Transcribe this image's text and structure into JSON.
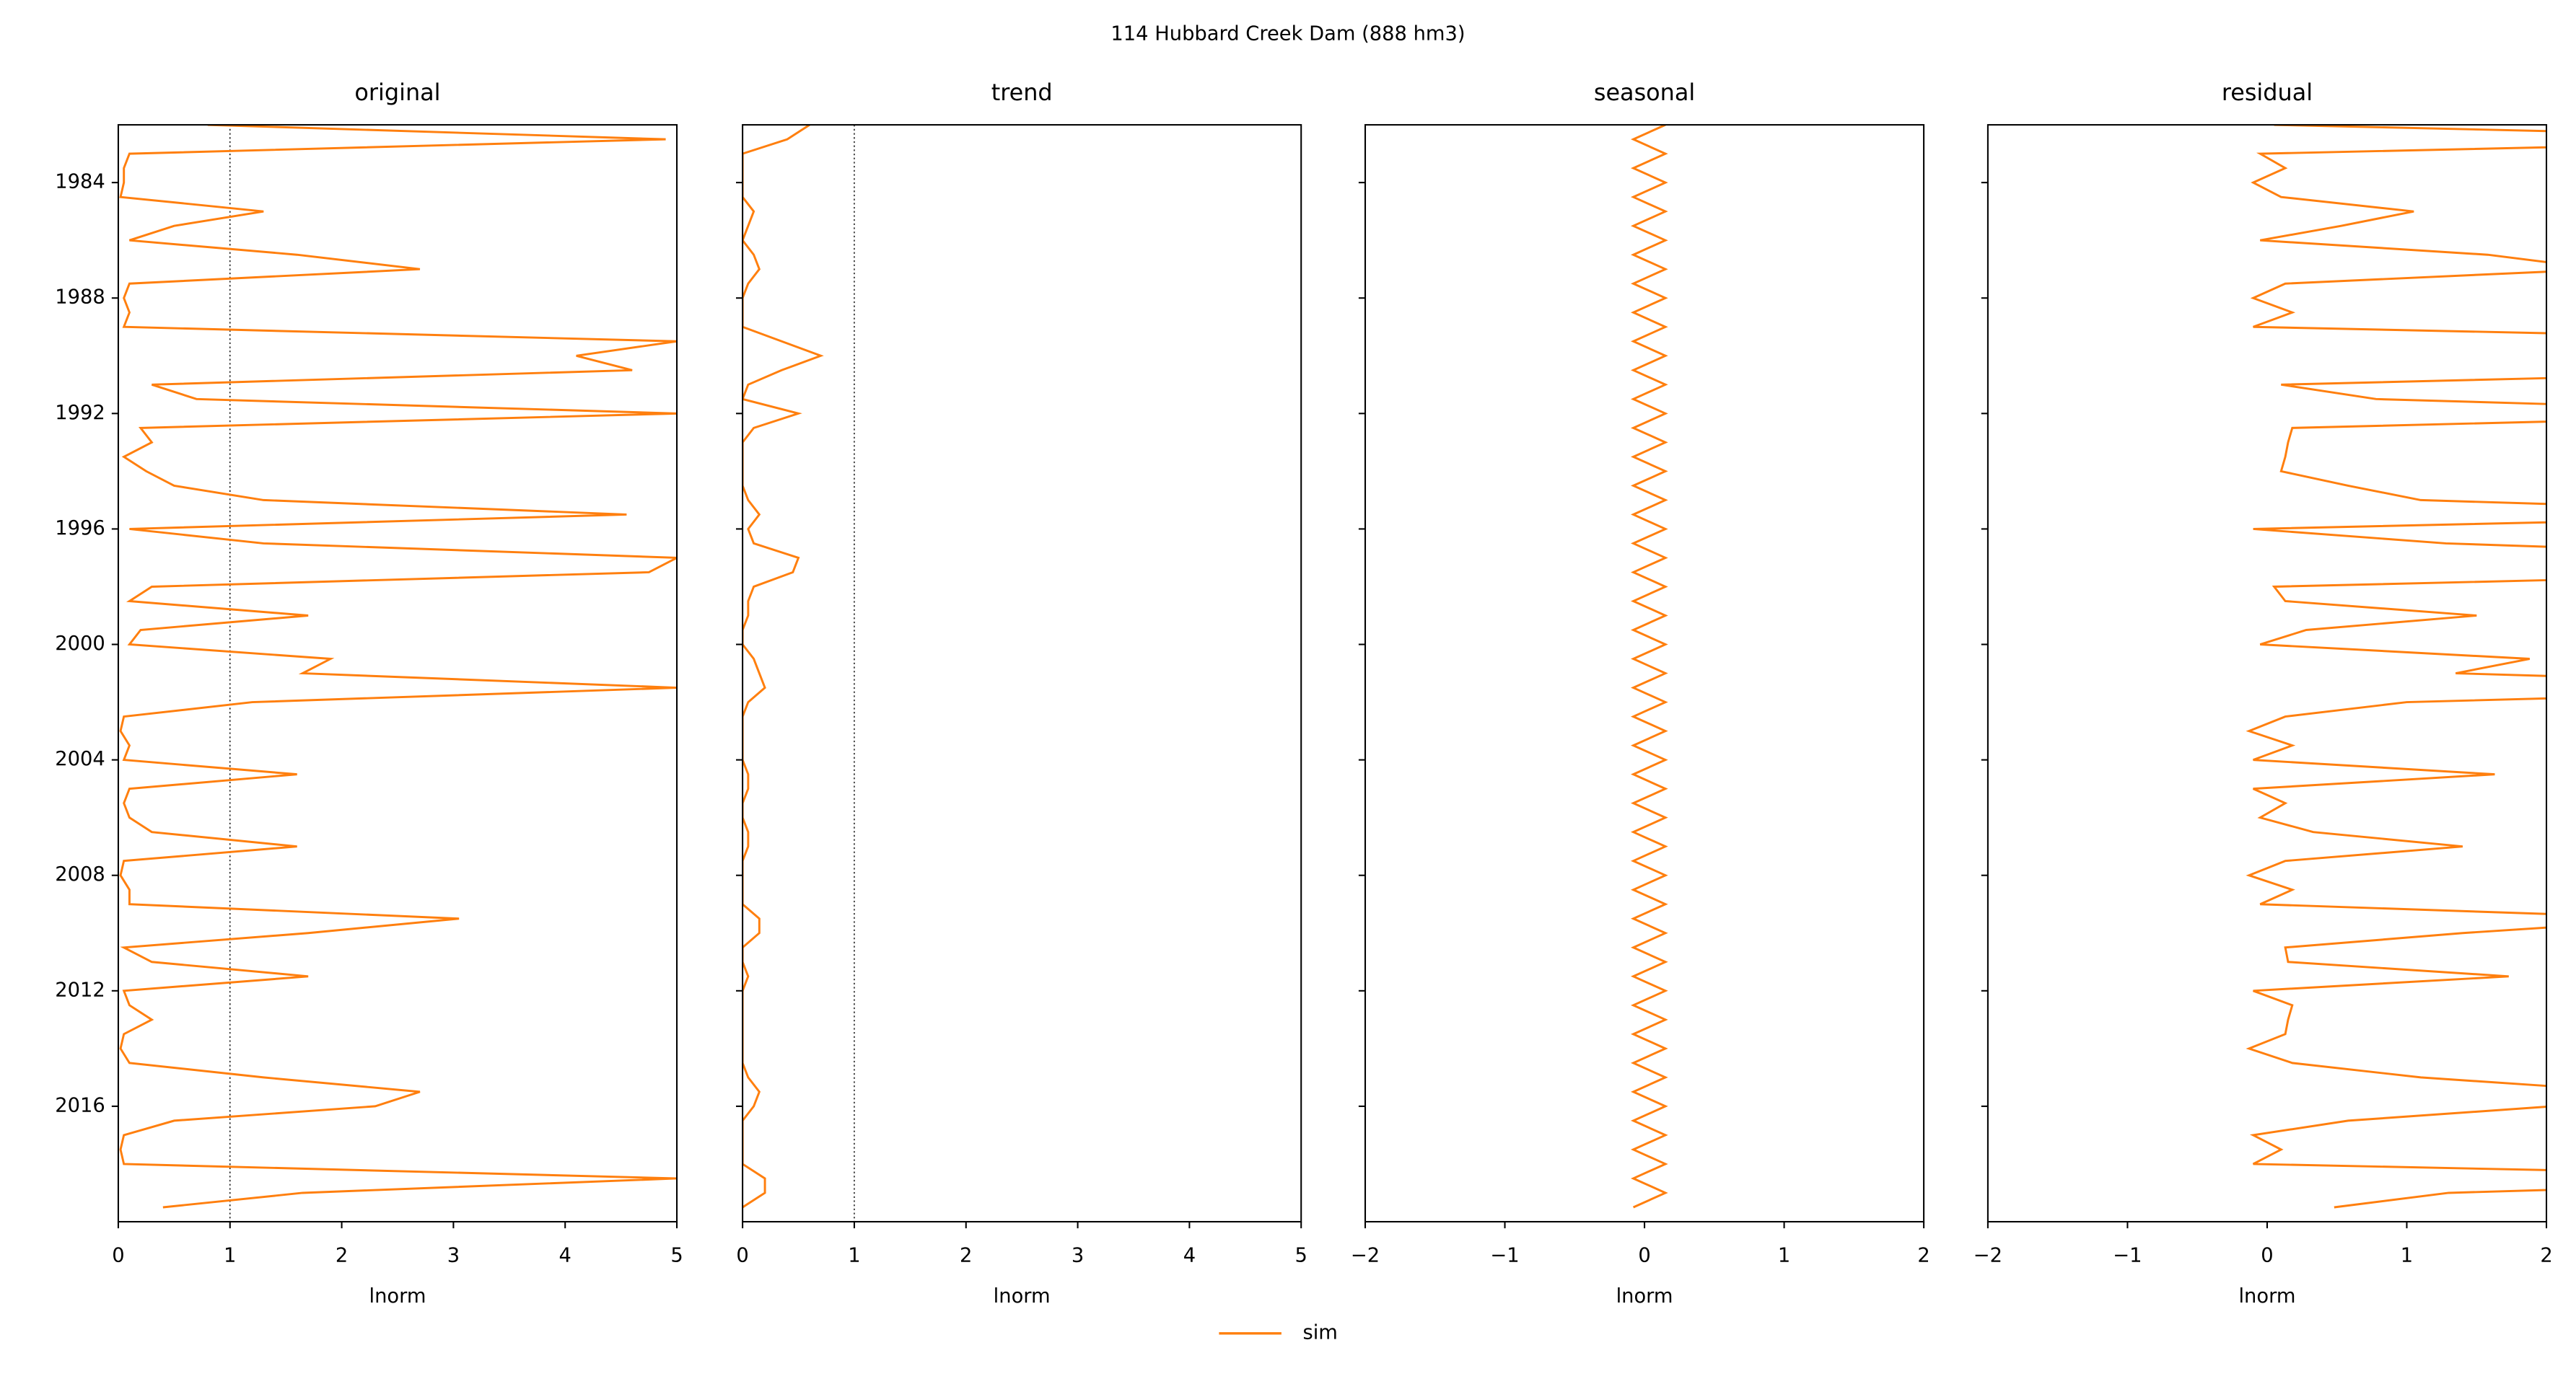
{
  "title": "114  Hubbard Creek Dam (888 hm3)",
  "chart_data": [
    {
      "type": "line",
      "title": "original",
      "xlabel": "lnorm",
      "xlim": [
        0,
        5
      ],
      "xticks": [
        0,
        1,
        2,
        3,
        4,
        5
      ],
      "vline": 1,
      "ylim": [
        1982,
        2020
      ],
      "yticks": [
        1984,
        1988,
        1992,
        1996,
        2000,
        2004,
        2008,
        2012,
        2016
      ],
      "y": [
        1982,
        1982.5,
        1983,
        1983.5,
        1984,
        1984.5,
        1985,
        1985.5,
        1986,
        1986.5,
        1987,
        1987.5,
        1988,
        1988.5,
        1989,
        1989.5,
        1990,
        1990.5,
        1991,
        1991.5,
        1992,
        1992.5,
        1993,
        1993.5,
        1994,
        1994.5,
        1995,
        1995.5,
        1996,
        1996.5,
        1997,
        1997.5,
        1998,
        1998.5,
        1999,
        1999.5,
        2000,
        2000.5,
        2001,
        2001.5,
        2002,
        2002.5,
        2003,
        2003.5,
        2004,
        2004.5,
        2005,
        2005.5,
        2006,
        2006.5,
        2007,
        2007.5,
        2008,
        2008.5,
        2009,
        2009.5,
        2010,
        2010.5,
        2011,
        2011.5,
        2012,
        2012.5,
        2013,
        2013.5,
        2014,
        2014.5,
        2015,
        2015.5,
        2016,
        2016.5,
        2017,
        2017.5,
        2018,
        2018.5,
        2019,
        2019.5
      ],
      "series": [
        {
          "name": "sim",
          "color": "#ff7f0e",
          "values": [
            0.8,
            4.9,
            0.1,
            0.05,
            0.05,
            0.02,
            1.3,
            0.5,
            0.1,
            1.6,
            2.7,
            0.1,
            0.05,
            0.1,
            0.05,
            5,
            4.1,
            4.6,
            0.3,
            0.7,
            5,
            0.2,
            0.3,
            0.05,
            0.25,
            0.5,
            1.3,
            4.55,
            0.1,
            1.3,
            5,
            4.75,
            0.3,
            0.1,
            1.7,
            0.2,
            0.1,
            1.9,
            1.65,
            5,
            1.2,
            0.05,
            0.02,
            0.1,
            0.05,
            1.6,
            0.1,
            0.05,
            0.1,
            0.3,
            1.6,
            0.05,
            0.02,
            0.1,
            0.1,
            3.05,
            1.7,
            0.05,
            0.3,
            1.7,
            0.05,
            0.1,
            0.3,
            0.05,
            0.02,
            0.1,
            1.3,
            2.7,
            2.3,
            0.5,
            0.05,
            0.02,
            0.05,
            5,
            1.65,
            0.4
          ]
        }
      ]
    },
    {
      "type": "line",
      "title": "trend",
      "xlabel": "lnorm",
      "xlim": [
        0,
        5
      ],
      "xticks": [
        0,
        1,
        2,
        3,
        4,
        5
      ],
      "vline": 1,
      "ylim": [
        1982,
        2020
      ],
      "yticks": [
        1984,
        1988,
        1992,
        1996,
        2000,
        2004,
        2008,
        2012,
        2016
      ],
      "y": [
        1982,
        1982.5,
        1983,
        1983.5,
        1984,
        1984.5,
        1985,
        1985.5,
        1986,
        1986.5,
        1987,
        1987.5,
        1988,
        1988.5,
        1989,
        1989.5,
        1990,
        1990.5,
        1991,
        1991.5,
        1992,
        1992.5,
        1993,
        1993.5,
        1994,
        1994.5,
        1995,
        1995.5,
        1996,
        1996.5,
        1997,
        1997.5,
        1998,
        1998.5,
        1999,
        1999.5,
        2000,
        2000.5,
        2001,
        2001.5,
        2002,
        2002.5,
        2003,
        2003.5,
        2004,
        2004.5,
        2005,
        2005.5,
        2006,
        2006.5,
        2007,
        2007.5,
        2008,
        2008.5,
        2009,
        2009.5,
        2010,
        2010.5,
        2011,
        2011.5,
        2012,
        2012.5,
        2013,
        2013.5,
        2014,
        2014.5,
        2015,
        2015.5,
        2016,
        2016.5,
        2017,
        2017.5,
        2018,
        2018.5,
        2019,
        2019.5
      ],
      "series": [
        {
          "name": "sim",
          "color": "#ff7f0e",
          "values": [
            0.6,
            0.4,
            0,
            0,
            0,
            0,
            0.1,
            0.05,
            0,
            0.1,
            0.15,
            0.05,
            0,
            0,
            0,
            0.35,
            0.7,
            0.35,
            0.05,
            0,
            0.5,
            0.1,
            0,
            0,
            0,
            0,
            0.05,
            0.15,
            0.05,
            0.1,
            0.5,
            0.45,
            0.1,
            0.05,
            0.05,
            0,
            0,
            0.1,
            0.15,
            0.2,
            0.05,
            0,
            0,
            0,
            0,
            0.05,
            0.05,
            0,
            0,
            0.05,
            0.05,
            0,
            0,
            0,
            0,
            0.15,
            0.15,
            0,
            0,
            0.05,
            0,
            0,
            0,
            0,
            0,
            0,
            0.05,
            0.15,
            0.1,
            0,
            0,
            0,
            0,
            0.2,
            0.2,
            0
          ]
        }
      ]
    },
    {
      "type": "line",
      "title": "seasonal",
      "xlabel": "lnorm",
      "xlim": [
        -2,
        2
      ],
      "xticks": [
        {
          "value": -2,
          "label": "−2"
        },
        {
          "value": -1,
          "label": "−1"
        },
        0,
        1,
        2
      ],
      "ylim": [
        1982,
        2020
      ],
      "yticks": [
        1984,
        1988,
        1992,
        1996,
        2000,
        2004,
        2008,
        2012,
        2016
      ],
      "y": [
        1982,
        1982.5,
        1983,
        1983.5,
        1984,
        1984.5,
        1985,
        1985.5,
        1986,
        1986.5,
        1987,
        1987.5,
        1988,
        1988.5,
        1989,
        1989.5,
        1990,
        1990.5,
        1991,
        1991.5,
        1992,
        1992.5,
        1993,
        1993.5,
        1994,
        1994.5,
        1995,
        1995.5,
        1996,
        1996.5,
        1997,
        1997.5,
        1998,
        1998.5,
        1999,
        1999.5,
        2000,
        2000.5,
        2001,
        2001.5,
        2002,
        2002.5,
        2003,
        2003.5,
        2004,
        2004.5,
        2005,
        2005.5,
        2006,
        2006.5,
        2007,
        2007.5,
        2008,
        2008.5,
        2009,
        2009.5,
        2010,
        2010.5,
        2011,
        2011.5,
        2012,
        2012.5,
        2013,
        2013.5,
        2014,
        2014.5,
        2015,
        2015.5,
        2016,
        2016.5,
        2017,
        2017.5,
        2018,
        2018.5,
        2019,
        2019.5
      ],
      "series": [
        {
          "name": "sim",
          "color": "#ff7f0e",
          "values": [
            0.15,
            -0.08,
            0.15,
            -0.08,
            0.15,
            -0.08,
            0.15,
            -0.08,
            0.15,
            -0.08,
            0.15,
            -0.08,
            0.15,
            -0.08,
            0.15,
            -0.08,
            0.15,
            -0.08,
            0.15,
            -0.08,
            0.15,
            -0.08,
            0.15,
            -0.08,
            0.15,
            -0.08,
            0.15,
            -0.08,
            0.15,
            -0.08,
            0.15,
            -0.08,
            0.15,
            -0.08,
            0.15,
            -0.08,
            0.15,
            -0.08,
            0.15,
            -0.08,
            0.15,
            -0.08,
            0.15,
            -0.08,
            0.15,
            -0.08,
            0.15,
            -0.08,
            0.15,
            -0.08,
            0.15,
            -0.08,
            0.15,
            -0.08,
            0.15,
            -0.08,
            0.15,
            -0.08,
            0.15,
            -0.08,
            0.15,
            -0.08,
            0.15,
            -0.08,
            0.15,
            -0.08,
            0.15,
            -0.08,
            0.15,
            -0.08,
            0.15,
            -0.08,
            0.15,
            -0.08,
            0.15,
            -0.08
          ]
        }
      ]
    },
    {
      "type": "line",
      "title": "residual",
      "xlabel": "lnorm",
      "xlim": [
        -2,
        2
      ],
      "xticks": [
        {
          "value": -2,
          "label": "−2"
        },
        {
          "value": -1,
          "label": "−1"
        },
        0,
        1,
        2
      ],
      "ylim": [
        1982,
        2020
      ],
      "yticks": [
        1984,
        1988,
        1992,
        1996,
        2000,
        2004,
        2008,
        2012,
        2016
      ],
      "y": [
        1982,
        1982.5,
        1983,
        1983.5,
        1984,
        1984.5,
        1985,
        1985.5,
        1986,
        1986.5,
        1987,
        1987.5,
        1988,
        1988.5,
        1989,
        1989.5,
        1990,
        1990.5,
        1991,
        1991.5,
        1992,
        1992.5,
        1993,
        1993.5,
        1994,
        1994.5,
        1995,
        1995.5,
        1996,
        1996.5,
        1997,
        1997.5,
        1998,
        1998.5,
        1999,
        1999.5,
        2000,
        2000.5,
        2001,
        2001.5,
        2002,
        2002.5,
        2003,
        2003.5,
        2004,
        2004.5,
        2005,
        2005.5,
        2006,
        2006.5,
        2007,
        2007.5,
        2008,
        2008.5,
        2009,
        2009.5,
        2010,
        2010.5,
        2011,
        2011.5,
        2012,
        2012.5,
        2013,
        2013.5,
        2014,
        2014.5,
        2015,
        2015.5,
        2016,
        2016.5,
        2017,
        2017.5,
        2018,
        2018.5,
        2019,
        2019.5
      ],
      "series": [
        {
          "name": "sim",
          "color": "#ff7f0e",
          "values": [
            0.05,
            4.58,
            -0.05,
            0.13,
            -0.1,
            0.1,
            1.05,
            0.53,
            -0.05,
            1.58,
            2.4,
            0.13,
            -0.1,
            0.18,
            -0.1,
            4.73,
            3.25,
            4.33,
            0.1,
            0.78,
            4.35,
            0.18,
            0.15,
            0.13,
            0.1,
            0.58,
            1.1,
            4.48,
            -0.1,
            1.28,
            4.35,
            4.38,
            0.05,
            0.13,
            1.5,
            0.28,
            -0.05,
            1.88,
            1.35,
            4.88,
            1.0,
            0.13,
            -0.13,
            0.18,
            -0.1,
            1.63,
            -0.1,
            0.13,
            -0.05,
            0.33,
            1.4,
            0.13,
            -0.13,
            0.18,
            -0.05,
            2.98,
            1.4,
            0.13,
            0.15,
            1.73,
            -0.1,
            0.18,
            0.15,
            0.13,
            -0.13,
            0.18,
            1.1,
            2.63,
            2.05,
            0.58,
            -0.1,
            0.1,
            -0.1,
            4.88,
            1.3,
            0.48
          ]
        }
      ]
    }
  ]
}
